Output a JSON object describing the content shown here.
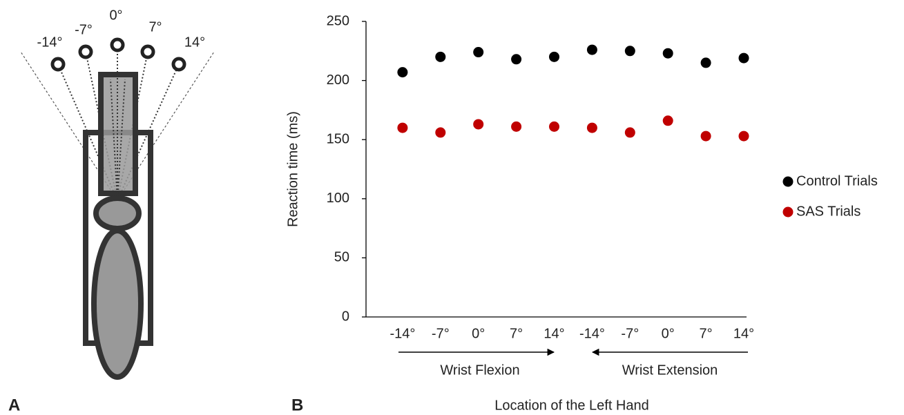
{
  "diagram": {
    "panel_label": "A",
    "angle_labels": [
      "-14°",
      "-7°",
      "0°",
      "7°",
      "14°"
    ]
  },
  "chart_data": {
    "type": "scatter",
    "panel_label": "B",
    "xlabel": "Location of the Left Hand",
    "ylabel": "Reaction time (ms)",
    "categories": [
      "-14°",
      "-7°",
      "0°",
      "7°",
      "14°",
      "-14°",
      "-7°",
      "0°",
      "7°",
      "14°"
    ],
    "series": [
      {
        "name": "Control Trials",
        "color": "#000000",
        "values": [
          207,
          220,
          224,
          218,
          220,
          226,
          225,
          223,
          215,
          219
        ]
      },
      {
        "name": "SAS Trials",
        "color": "#c00000",
        "values": [
          160,
          156,
          163,
          161,
          161,
          160,
          156,
          166,
          153,
          153
        ]
      }
    ],
    "annotations": [
      "Wrist Flexion",
      "Wrist Extension"
    ],
    "ylim": [
      0,
      250
    ],
    "yticks": [
      0,
      50,
      100,
      150,
      200,
      250
    ],
    "grid": false,
    "legend": "right"
  }
}
